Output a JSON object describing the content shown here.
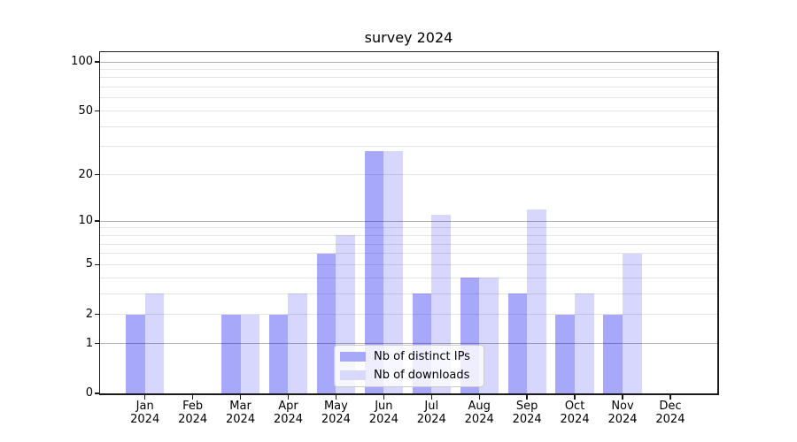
{
  "figure": {
    "title": "survey 2024",
    "background": "#ffffff"
  },
  "chart_data": {
    "type": "bar",
    "title": "survey 2024",
    "categories": [
      "Jan",
      "Feb",
      "Mar",
      "Apr",
      "May",
      "Jun",
      "Jul",
      "Aug",
      "Sep",
      "Oct",
      "Nov",
      "Dec"
    ],
    "category_year": "2024",
    "series": [
      {
        "name": "Nb of distinct IPs",
        "legend_color": "#a8a8fa",
        "fill": "rgba(0,0,240,0.34)",
        "values": [
          2,
          0,
          2,
          2,
          6,
          28,
          3,
          4,
          3,
          2,
          2,
          0
        ]
      },
      {
        "name": "Nb of downloads",
        "legend_color": "#d8d8fa",
        "fill": "rgba(0,0,240,0.155)",
        "values": [
          3,
          0,
          2,
          3,
          8,
          28,
          11,
          4,
          12,
          3,
          6,
          0
        ]
      }
    ],
    "xlabel": "",
    "ylabel": "",
    "yscale": "log1p",
    "ylim": [
      0,
      115
    ],
    "yticks": [
      0,
      1,
      2,
      5,
      10,
      20,
      50,
      100
    ],
    "major_gridlines": [
      1,
      10,
      100
    ],
    "minor_gridlines": [
      2,
      3,
      4,
      5,
      6,
      7,
      8,
      9,
      20,
      30,
      40,
      50,
      60,
      70,
      80,
      90
    ],
    "grid": true,
    "legend_position": "inside-bottom-center",
    "colors": {
      "major_grid": "#b0b0b0",
      "minor_grid": "#e4e4e4",
      "spine": "#1a1a1a",
      "text": "#000000"
    }
  }
}
